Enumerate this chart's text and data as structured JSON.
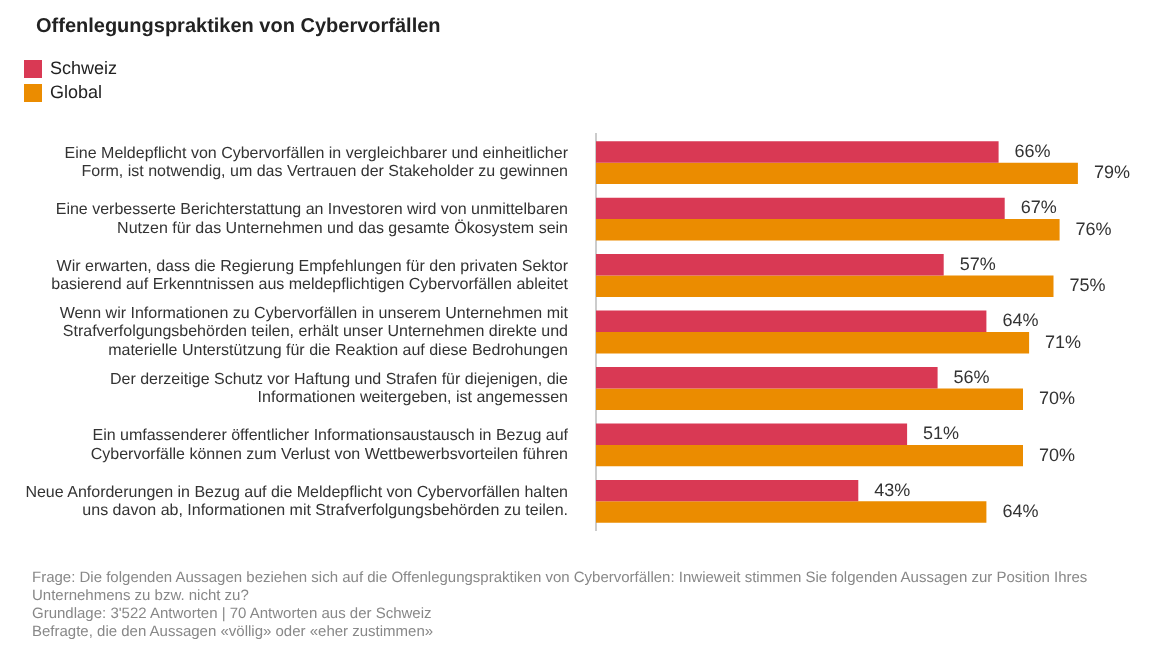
{
  "chart_data": {
    "type": "bar",
    "orientation": "horizontal",
    "title": "Offenlegungspraktiken von Cybervorfällen",
    "categories": [
      "Eine Meldepflicht von Cybervorfällen in vergleichbarer und einheitlicher Form, ist notwendig, um das Vertrauen der Stakeholder zu gewinnen",
      "Eine verbesserte Berichterstattung an Investoren wird von unmittelbaren Nutzen für das Unternehmen und das gesamte Ökosystem sein",
      "Wir erwarten, dass die Regierung Empfehlungen für den privaten Sektor basierend auf Erkenntnissen aus meldepflichtigen Cybervorfällen ableitet",
      "Wenn wir Informationen zu Cybervorfällen in unserem Unternehmen mit Strafverfolgungsbehörden teilen, erhält unser Unternehmen direkte und materielle Unterstützung für die Reaktion auf diese Bedrohungen",
      "Der derzeitige Schutz vor Haftung und Strafen für diejenigen, die Informationen weitergeben, ist angemessen",
      "Ein umfassenderer öffentlicher Informationsaustausch in Bezug auf Cybervorfälle können zum Verlust von Wettbewerbsvorteilen führen",
      "Neue Anforderungen in Bezug auf die Meldepflicht von Cybervorfällen halten uns davon ab, Informationen mit Strafverfolgungsbehörden zu teilen."
    ],
    "series": [
      {
        "name": "Schweiz",
        "color": "#d93954",
        "values": [
          66,
          67,
          57,
          64,
          56,
          51,
          43
        ],
        "value_labels": [
          "66%",
          "67%",
          "57%",
          "64%",
          "56%",
          "51%",
          "43%"
        ]
      },
      {
        "name": "Global",
        "color": "#eb8c00",
        "values": [
          79,
          76,
          75,
          71,
          70,
          70,
          64
        ],
        "value_labels": [
          "79%",
          "76%",
          "75%",
          "71%",
          "70%",
          "70%",
          "64%"
        ]
      }
    ],
    "legend": "top left",
    "annotations": [
      "Frage: Die folgenden Aussagen beziehen sich auf die Offenlegungspraktiken von Cybervorfällen: Inwieweit stimmen Sie folgenden Aussagen zur Position Ihres Unternehmens zu bzw. nicht zu?",
      "Grundlage: 3'522 Antworten | 70 Antworten aus der Schweiz",
      "Befragte, die den Aussagen «völlig» oder «eher zustimmen»"
    ]
  }
}
